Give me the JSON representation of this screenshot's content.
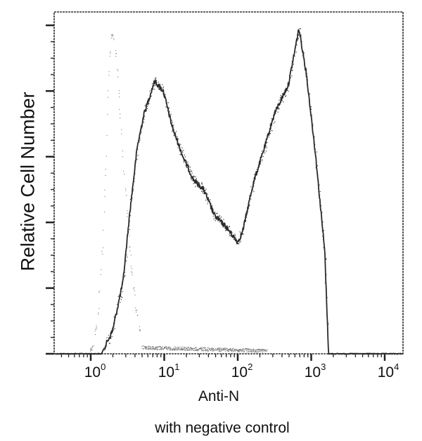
{
  "chart_data": {
    "type": "line",
    "title": "",
    "caption": "with negative control",
    "xlabel": "Anti-N",
    "ylabel": "Relative Cell Number",
    "xscale": "log",
    "xlim": [
      0.3,
      12000
    ],
    "ylim": [
      0,
      103
    ],
    "x_ticks": [
      {
        "base": "10",
        "exp": "0",
        "value": 1
      },
      {
        "base": "10",
        "exp": "1",
        "value": 10
      },
      {
        "base": "10",
        "exp": "2",
        "value": 100
      },
      {
        "base": "10",
        "exp": "3",
        "value": 1000
      },
      {
        "base": "10",
        "exp": "4",
        "value": 10000
      }
    ],
    "y_ticks_labeled": false,
    "y_major_ticks": [
      0,
      20,
      40,
      60,
      80,
      100
    ],
    "grid": false,
    "legend": null,
    "series": [
      {
        "name": "Anti-N",
        "style": "solid",
        "color": "#2a2a2a",
        "x": [
          0.3,
          1.0,
          1.4,
          1.98,
          2.75,
          3.4,
          4.3,
          5.3,
          7.4,
          9.7,
          12.9,
          18,
          25,
          34.5,
          48.5,
          67,
          100,
          116,
          163,
          226,
          315,
          490,
          680,
          850,
          1140,
          1530,
          1720,
          3000,
          12000
        ],
        "y": [
          0,
          0,
          0,
          7,
          22,
          43,
          63,
          73,
          83,
          80,
          69,
          60,
          53,
          50,
          42,
          39,
          34,
          37,
          52,
          62,
          73,
          82,
          99,
          86,
          61,
          31,
          0,
          0,
          0
        ]
      },
      {
        "name": "Negative control",
        "style": "dotted",
        "color": "#777777",
        "x": [
          0.3,
          0.9,
          1.05,
          1.25,
          1.45,
          1.6,
          1.75,
          1.95,
          2.2,
          2.55,
          3.0,
          3.5,
          4.2,
          5.0,
          12000
        ],
        "y": [
          0,
          0,
          2,
          12,
          35,
          62,
          85,
          98,
          90,
          70,
          47,
          27,
          12,
          2,
          0
        ]
      }
    ]
  },
  "labels": {
    "ylabel": "Relative Cell Number",
    "xlabel": "Anti-N",
    "caption": "with negative control"
  },
  "ticks": [
    {
      "base": "10",
      "exp": "0"
    },
    {
      "base": "10",
      "exp": "1"
    },
    {
      "base": "10",
      "exp": "2"
    },
    {
      "base": "10",
      "exp": "3"
    },
    {
      "base": "10",
      "exp": "4"
    }
  ]
}
